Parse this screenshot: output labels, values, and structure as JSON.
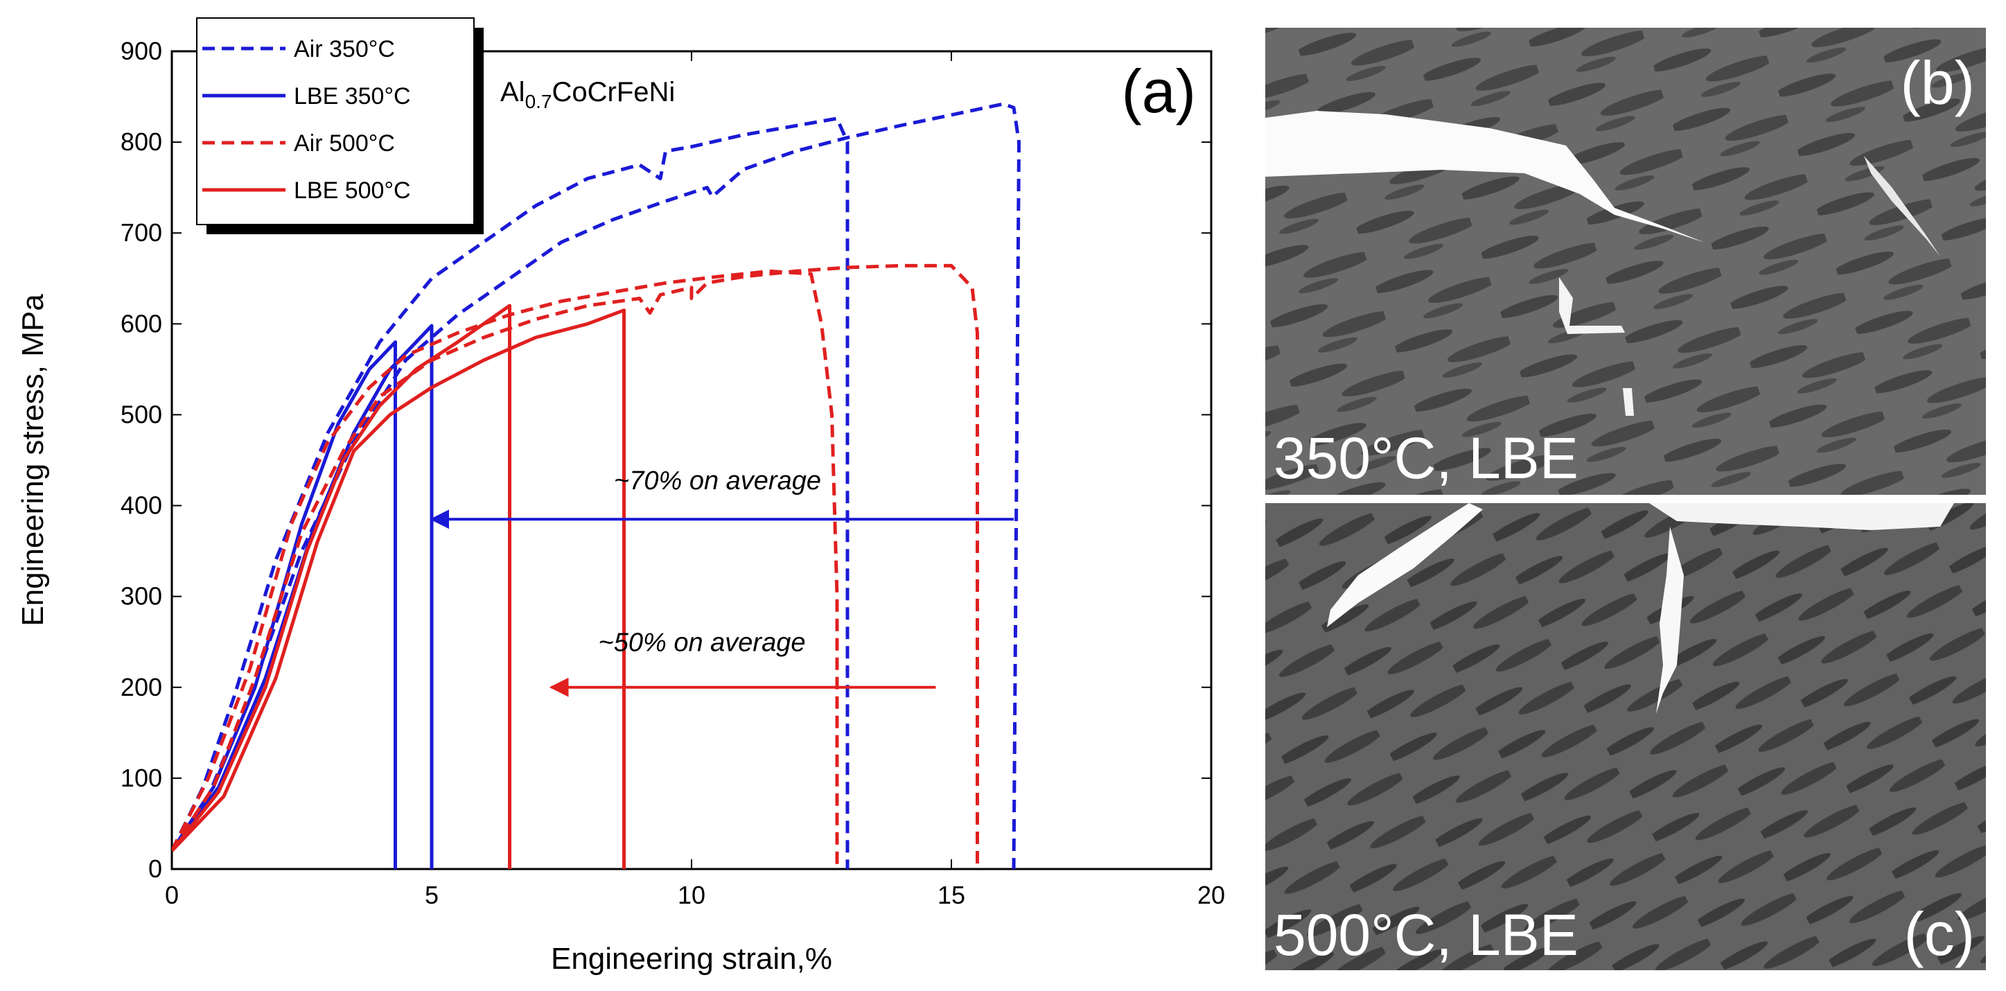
{
  "chart_data": {
    "type": "line",
    "panel_label": "(a)",
    "xlabel": "Engineering strain,%",
    "ylabel": "Engineering stress, MPa",
    "xlim": [
      0,
      20
    ],
    "ylim": [
      0,
      900
    ],
    "xticks": [
      "0",
      "5",
      "10",
      "15",
      "20"
    ],
    "yticks": [
      "0",
      "100",
      "200",
      "300",
      "400",
      "500",
      "600",
      "700",
      "800",
      "900"
    ],
    "alloy_label": {
      "base": "Al",
      "sub": "0.7",
      "rest": "CoCrFeNi"
    },
    "legend": [
      {
        "label": "Air 350°C",
        "color": "#1a1ad6",
        "style": "dashed"
      },
      {
        "label": "LBE 350°C",
        "color": "#1a1ad6",
        "style": "solid"
      },
      {
        "label": "Air 500°C",
        "color": "#e0201f",
        "style": "dashed"
      },
      {
        "label": "LBE 500°C",
        "color": "#e0201f",
        "style": "solid"
      }
    ],
    "series": [
      {
        "name": "Air 350°C #1",
        "color": "#1a1ad6",
        "style": "dashed",
        "points": [
          [
            0,
            20
          ],
          [
            0.6,
            90
          ],
          [
            1.2,
            190
          ],
          [
            2,
            340
          ],
          [
            3,
            480
          ],
          [
            4,
            580
          ],
          [
            5,
            650
          ],
          [
            6,
            690
          ],
          [
            7,
            730
          ],
          [
            8,
            760
          ],
          [
            9,
            775
          ],
          [
            9.4,
            760
          ],
          [
            9.5,
            790
          ],
          [
            10,
            795
          ],
          [
            11,
            808
          ],
          [
            12,
            818
          ],
          [
            12.8,
            826
          ],
          [
            13,
            800
          ],
          [
            13,
            0
          ]
        ]
      },
      {
        "name": "Air 350°C #2",
        "color": "#1a1ad6",
        "style": "dashed",
        "points": [
          [
            0,
            20
          ],
          [
            0.7,
            80
          ],
          [
            1.5,
            190
          ],
          [
            2.5,
            350
          ],
          [
            3.5,
            470
          ],
          [
            4.5,
            560
          ],
          [
            5.5,
            610
          ],
          [
            6.5,
            650
          ],
          [
            7.5,
            690
          ],
          [
            8.5,
            715
          ],
          [
            9.5,
            735
          ],
          [
            10.3,
            750
          ],
          [
            10.4,
            740
          ],
          [
            11,
            770
          ],
          [
            12,
            790
          ],
          [
            13,
            805
          ],
          [
            14,
            818
          ],
          [
            15,
            830
          ],
          [
            16,
            842
          ],
          [
            16.2,
            838
          ],
          [
            16.3,
            800
          ],
          [
            16.2,
            0
          ]
        ]
      },
      {
        "name": "LBE 350°C #1",
        "color": "#1a1ad6",
        "style": "solid",
        "points": [
          [
            0,
            20
          ],
          [
            0.8,
            90
          ],
          [
            1.6,
            200
          ],
          [
            2.5,
            380
          ],
          [
            3.2,
            490
          ],
          [
            3.8,
            550
          ],
          [
            4.3,
            580
          ],
          [
            4.3,
            0
          ]
        ]
      },
      {
        "name": "LBE 350°C #2",
        "color": "#1a1ad6",
        "style": "solid",
        "points": [
          [
            0,
            20
          ],
          [
            0.9,
            90
          ],
          [
            1.8,
            210
          ],
          [
            2.7,
            370
          ],
          [
            3.5,
            480
          ],
          [
            4.2,
            550
          ],
          [
            4.7,
            580
          ],
          [
            5,
            598
          ],
          [
            5,
            0
          ]
        ]
      },
      {
        "name": "Air 500°C #1",
        "color": "#e0201f",
        "style": "dashed",
        "points": [
          [
            0,
            20
          ],
          [
            0.7,
            100
          ],
          [
            1.5,
            220
          ],
          [
            2.3,
            380
          ],
          [
            3,
            470
          ],
          [
            3.8,
            530
          ],
          [
            4.5,
            565
          ],
          [
            5.5,
            590
          ],
          [
            6.5,
            610
          ],
          [
            7.5,
            625
          ],
          [
            8.5,
            635
          ],
          [
            9.5,
            645
          ],
          [
            10.5,
            652
          ],
          [
            11.5,
            658
          ],
          [
            12.3,
            655
          ],
          [
            12.5,
            600
          ],
          [
            12.7,
            500
          ],
          [
            12.8,
            300
          ],
          [
            12.8,
            0
          ]
        ]
      },
      {
        "name": "Air 500°C #2",
        "color": "#e0201f",
        "style": "dashed",
        "points": [
          [
            0,
            20
          ],
          [
            0.8,
            90
          ],
          [
            1.6,
            210
          ],
          [
            2.5,
            370
          ],
          [
            3.3,
            460
          ],
          [
            4,
            520
          ],
          [
            5,
            560
          ],
          [
            6,
            585
          ],
          [
            7,
            605
          ],
          [
            8,
            620
          ],
          [
            9,
            628
          ],
          [
            9.2,
            612
          ],
          [
            9.4,
            632
          ],
          [
            10,
            640
          ],
          [
            10,
            628
          ],
          [
            10.3,
            645
          ],
          [
            11,
            652
          ],
          [
            12,
            658
          ],
          [
            13,
            662
          ],
          [
            14,
            664
          ],
          [
            15,
            664
          ],
          [
            15.4,
            640
          ],
          [
            15.5,
            590
          ],
          [
            15.5,
            0
          ]
        ]
      },
      {
        "name": "LBE 500°C #1",
        "color": "#e0201f",
        "style": "solid",
        "points": [
          [
            0,
            20
          ],
          [
            0.9,
            85
          ],
          [
            1.8,
            200
          ],
          [
            2.6,
            350
          ],
          [
            3.3,
            450
          ],
          [
            4,
            510
          ],
          [
            4.7,
            550
          ],
          [
            5.5,
            580
          ],
          [
            6.5,
            620
          ],
          [
            6.5,
            0
          ]
        ]
      },
      {
        "name": "LBE 500°C #2",
        "color": "#e0201f",
        "style": "solid",
        "points": [
          [
            0,
            20
          ],
          [
            1,
            80
          ],
          [
            2,
            210
          ],
          [
            2.8,
            360
          ],
          [
            3.5,
            460
          ],
          [
            4.2,
            500
          ],
          [
            5,
            530
          ],
          [
            6,
            560
          ],
          [
            7,
            585
          ],
          [
            8,
            600
          ],
          [
            8.7,
            615
          ],
          [
            8.7,
            0
          ]
        ]
      }
    ],
    "annotations": [
      {
        "text": "~70% on average",
        "color": "#1a1ad6",
        "arrow_from": [
          16.2,
          385
        ],
        "arrow_to": [
          5,
          385
        ],
        "text_at": [
          10.5,
          418
        ]
      },
      {
        "text": "~50% on average",
        "color": "#e0201f",
        "arrow_from": [
          14.7,
          200
        ],
        "arrow_to": [
          7.3,
          200
        ],
        "text_at": [
          10.2,
          240
        ]
      }
    ]
  },
  "micrographs": {
    "top": {
      "condition": "350°C, LBE",
      "panel_label": "(b)"
    },
    "bottom": {
      "condition": "500°C, LBE",
      "panel_label": "(c)"
    }
  }
}
